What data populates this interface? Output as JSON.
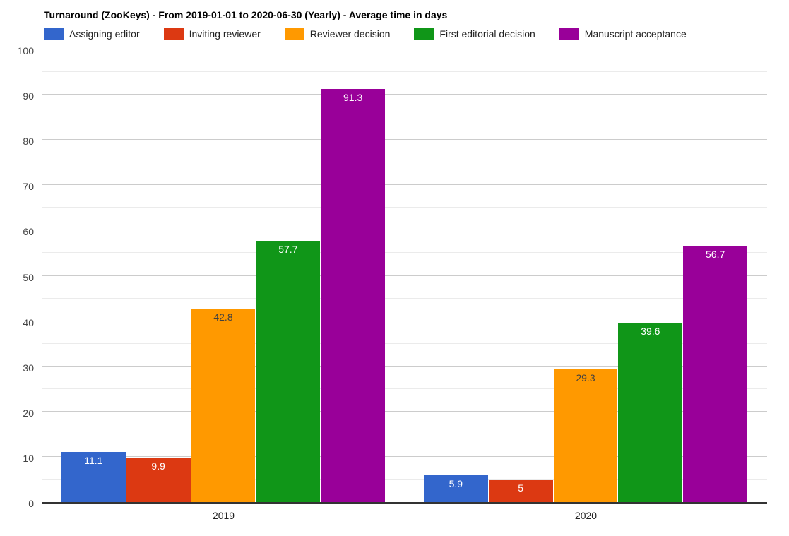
{
  "chart_data": {
    "type": "bar",
    "title": "Turnaround (ZooKeys) - From 2019-01-01 to 2020-06-30 (Yearly) - Average time in days",
    "categories": [
      "2019",
      "2020"
    ],
    "series": [
      {
        "name": "Assigning editor",
        "color": "#3366CC",
        "label_color": "#ffffff",
        "values": [
          11.1,
          5.9
        ],
        "labels": [
          "11.1",
          "5.9"
        ]
      },
      {
        "name": "Inviting reviewer",
        "color": "#DC3912",
        "label_color": "#ffffff",
        "values": [
          9.9,
          5
        ],
        "labels": [
          "9.9",
          "5"
        ]
      },
      {
        "name": "Reviewer decision",
        "color": "#FF9900",
        "label_color": "#404040",
        "values": [
          42.8,
          29.3
        ],
        "labels": [
          "42.8",
          "29.3"
        ]
      },
      {
        "name": "First editorial decision",
        "color": "#109618",
        "label_color": "#ffffff",
        "values": [
          57.7,
          39.6
        ],
        "labels": [
          "57.7",
          "39.6"
        ]
      },
      {
        "name": "Manuscript acceptance",
        "color": "#990099",
        "label_color": "#ffffff",
        "values": [
          91.3,
          56.7
        ],
        "labels": [
          "91.3",
          "56.7"
        ]
      }
    ],
    "ylim": [
      0,
      100
    ],
    "y_major_step": 10,
    "y_minor_step": 5,
    "y_tick_labels": [
      "0",
      "10",
      "20",
      "30",
      "40",
      "50",
      "60",
      "70",
      "80",
      "90",
      "100"
    ],
    "xlabel": "",
    "ylabel": "",
    "legend_position": "top",
    "grid": "on"
  },
  "colors": {
    "background": "#ffffff",
    "title_text": "#000000",
    "legend_text": "#222222",
    "tick_text": "#444444",
    "category_text": "#222222",
    "gridline_major": "#cccccc",
    "gridline_minor": "#ebebeb",
    "baseline": "#333333"
  }
}
